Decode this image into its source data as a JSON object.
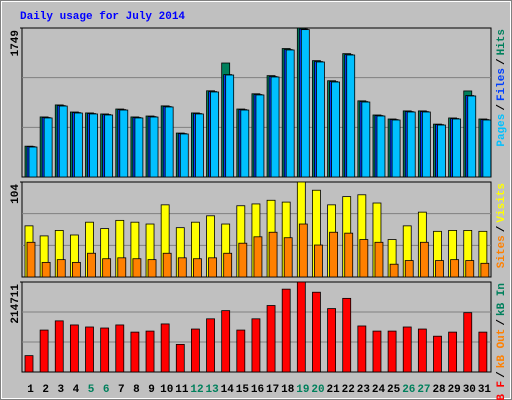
{
  "title": "Daily usage for July 2014",
  "categories": [
    "1",
    "2",
    "3",
    "4",
    "5",
    "6",
    "7",
    "8",
    "9",
    "10",
    "11",
    "12",
    "13",
    "14",
    "15",
    "16",
    "17",
    "18",
    "19",
    "20",
    "21",
    "22",
    "23",
    "24",
    "25",
    "26",
    "27",
    "28",
    "29",
    "30",
    "31"
  ],
  "category_colors": [
    "#000000",
    "#000000",
    "#000000",
    "#000000",
    "#00805c",
    "#00805c",
    "#000000",
    "#000000",
    "#000000",
    "#000000",
    "#000000",
    "#00805c",
    "#00805c",
    "#000000",
    "#000000",
    "#000000",
    "#000000",
    "#000000",
    "#00805c",
    "#00805c",
    "#000000",
    "#000000",
    "#000000",
    "#000000",
    "#000000",
    "#00805c",
    "#00805c",
    "#000000",
    "#000000",
    "#000000",
    "#000000"
  ],
  "legend_separator": "/",
  "grid": true,
  "chart_data": [
    {
      "type": "bar",
      "ylim": [
        0,
        1749
      ],
      "yticks": [
        1749
      ],
      "series": [
        {
          "name": "Pages",
          "color": "#00c0ff",
          "values": [
            352,
            693,
            833,
            751,
            740,
            728,
            786,
            693,
            704,
            822,
            505,
            740,
            998,
            1197,
            786,
            963,
            1174,
            1491,
            1730,
            1350,
            1115,
            1432,
            880,
            716,
            669,
            763,
            763,
            610,
            681,
            951,
            669
          ]
        },
        {
          "name": "Files",
          "color": "#0040ff",
          "values": [
            357,
            698,
            838,
            756,
            745,
            733,
            791,
            698,
            709,
            827,
            510,
            745,
            1003,
            1202,
            791,
            968,
            1179,
            1496,
            1737,
            1355,
            1120,
            1437,
            885,
            721,
            674,
            768,
            768,
            615,
            686,
            956,
            674
          ]
        },
        {
          "name": "Hits",
          "color": "#00805c",
          "values": [
            362,
            705,
            846,
            763,
            752,
            740,
            798,
            705,
            716,
            835,
            516,
            752,
            1012,
            1338,
            798,
            977,
            1190,
            1508,
            1749,
            1366,
            1130,
            1448,
            894,
            728,
            681,
            776,
            776,
            621,
            693,
            1010,
            681
          ]
        }
      ]
    },
    {
      "type": "bar",
      "ylim": [
        0,
        104
      ],
      "yticks": [
        104
      ],
      "series": [
        {
          "name": "Sites",
          "color": "#ff8000",
          "values": [
            38,
            16,
            19,
            16,
            26,
            20,
            21,
            20,
            19,
            26,
            21,
            20,
            21,
            26,
            37,
            44,
            49,
            43,
            58,
            35,
            49,
            48,
            41,
            38,
            14,
            18,
            38,
            18,
            19,
            18,
            15
          ]
        },
        {
          "name": "Visits",
          "color": "#ffff00",
          "values": [
            56,
            45,
            51,
            46,
            60,
            53,
            62,
            60,
            58,
            79,
            54,
            60,
            67,
            58,
            78,
            80,
            84,
            82,
            104,
            95,
            79,
            88,
            90,
            81,
            41,
            56,
            71,
            50,
            51,
            51,
            50
          ]
        }
      ]
    },
    {
      "type": "bar",
      "ylim": [
        0,
        214711
      ],
      "yticks": [
        214711
      ],
      "series": [
        {
          "name": "kB F",
          "color": "#ff0000",
          "values": [
            39040,
            100040,
            122000,
            112240,
            107360,
            104920,
            112240,
            95160,
            97600,
            114680,
            65880,
            102480,
            126880,
            146400,
            100040,
            126880,
            158600,
            197640,
            214711,
            190320,
            151280,
            175680,
            109800,
            97600,
            97600,
            107360,
            102480,
            85400,
            95160,
            141520,
            95160
          ]
        },
        {
          "name": "kB Out",
          "color": "#ff8000"
        },
        {
          "name": "kB In",
          "color": "#00805c"
        }
      ]
    }
  ]
}
